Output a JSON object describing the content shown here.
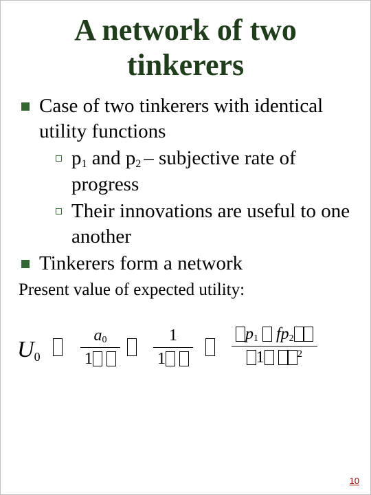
{
  "title_line1": "A network of two",
  "title_line2": "tinkerers",
  "item1": "Case of two tinkerers with identical utility functions",
  "sub1_pre": "p",
  "sub1_s1": "1",
  "sub1_mid": " and p",
  "sub1_s2": "2 ",
  "sub1_post": "– subjective rate of progress",
  "sub2": "Their innovations are useful to one another",
  "item2": "Tinkerers form a network",
  "present": "Present value of expected utility:",
  "formula": {
    "lhs_U": "U",
    "lhs_0": "0",
    "f1_num_a": "a",
    "f1_num_0": "0",
    "f1_den_1": "1",
    "f2_num_1": "1",
    "f2_den_1": "1",
    "f3_p": "p",
    "f3_s1": "1",
    "f3_f": "f",
    "f3_s2": "2",
    "f3_den_1": "1",
    "f3_sup2": "2"
  },
  "page_number": "10",
  "colors": {
    "title": "#1f3d1a",
    "bullet": "#336633",
    "pagenum": "#990000",
    "text": "#000000",
    "background": "#ffffff"
  }
}
